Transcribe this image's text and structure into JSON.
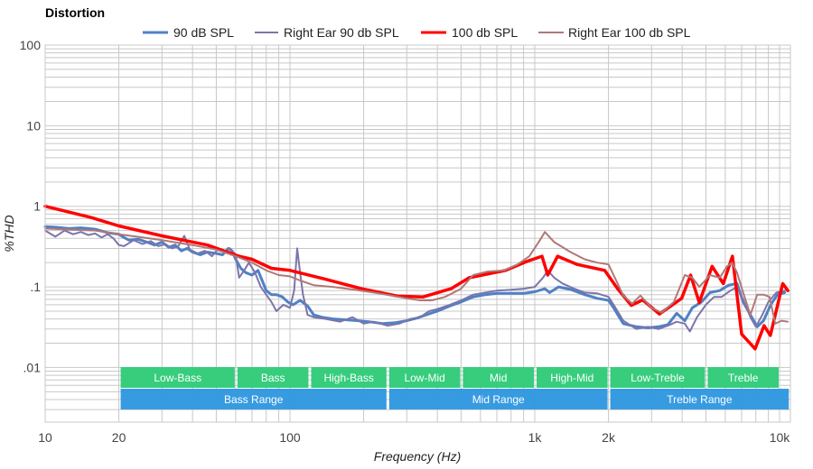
{
  "chart_data": {
    "type": "line",
    "title": "Distortion",
    "xlabel": "Frequency (Hz)",
    "ylabel": "%THD",
    "xscale": "log",
    "yscale": "log",
    "xlim": [
      10,
      11000
    ],
    "ylim": [
      0.0021,
      100
    ],
    "grid": true,
    "legend": "top-center",
    "x_ticks": [
      {
        "value": 10,
        "label": "10"
      },
      {
        "value": 20,
        "label": "20"
      },
      {
        "value": 100,
        "label": "100"
      },
      {
        "value": 1000,
        "label": "1k"
      },
      {
        "value": 2000,
        "label": "2k"
      },
      {
        "value": 10000,
        "label": "10k"
      }
    ],
    "y_ticks": [
      {
        "value": 100,
        "label": "100"
      },
      {
        "value": 10,
        "label": "10"
      },
      {
        "value": 1,
        "label": "1"
      },
      {
        "value": 0.1,
        "label": ".1"
      },
      {
        "value": 0.01,
        "label": ".01"
      }
    ],
    "bands": [
      {
        "label": "Low-Bass",
        "from": 20,
        "to": 60,
        "row": "sub",
        "color": "#33cc7a"
      },
      {
        "label": "Bass",
        "from": 60,
        "to": 120,
        "row": "sub",
        "color": "#33cc7a"
      },
      {
        "label": "High-Bass",
        "from": 120,
        "to": 250,
        "row": "sub",
        "color": "#33cc7a"
      },
      {
        "label": "Low-Mid",
        "from": 250,
        "to": 500,
        "row": "sub",
        "color": "#33cc7a"
      },
      {
        "label": "Mid",
        "from": 500,
        "to": 1000,
        "row": "sub",
        "color": "#33cc7a"
      },
      {
        "label": "High-Mid",
        "from": 1000,
        "to": 2000,
        "row": "sub",
        "color": "#33cc7a"
      },
      {
        "label": "Low-Treble",
        "from": 2000,
        "to": 5000,
        "row": "sub",
        "color": "#33cc7a"
      },
      {
        "label": "Treble",
        "from": 5000,
        "to": 10000,
        "row": "sub",
        "color": "#33cc7a"
      },
      {
        "label": "Bass Range",
        "from": 20,
        "to": 250,
        "row": "main",
        "color": "#3399e0"
      },
      {
        "label": "Mid Range",
        "from": 250,
        "to": 2000,
        "row": "main",
        "color": "#3399e0"
      },
      {
        "label": "Treble Range",
        "from": 2000,
        "to": 11000,
        "row": "main",
        "color": "#3399e0"
      }
    ],
    "series": [
      {
        "name": "90 dB SPL",
        "color": "#4f81c4",
        "width": 3,
        "points": [
          [
            10,
            0.56
          ],
          [
            11,
            0.55
          ],
          [
            12.5,
            0.53
          ],
          [
            14,
            0.54
          ],
          [
            16,
            0.52
          ],
          [
            18,
            0.47
          ],
          [
            20,
            0.45
          ],
          [
            21,
            0.41
          ],
          [
            22,
            0.38
          ],
          [
            24,
            0.39
          ],
          [
            26,
            0.36
          ],
          [
            28,
            0.33
          ],
          [
            30,
            0.36
          ],
          [
            32,
            0.31
          ],
          [
            34,
            0.33
          ],
          [
            36,
            0.28
          ],
          [
            38,
            0.3
          ],
          [
            40,
            0.27
          ],
          [
            43,
            0.25
          ],
          [
            46,
            0.27
          ],
          [
            50,
            0.26
          ],
          [
            53,
            0.25
          ],
          [
            56,
            0.3
          ],
          [
            58,
            0.28
          ],
          [
            60,
            0.22
          ],
          [
            63,
            0.17
          ],
          [
            66,
            0.15
          ],
          [
            70,
            0.14
          ],
          [
            74,
            0.16
          ],
          [
            77,
            0.12
          ],
          [
            80,
            0.09
          ],
          [
            84,
            0.08
          ],
          [
            88,
            0.08
          ],
          [
            93,
            0.075
          ],
          [
            98,
            0.065
          ],
          [
            103,
            0.06
          ],
          [
            110,
            0.068
          ],
          [
            118,
            0.058
          ],
          [
            125,
            0.045
          ],
          [
            135,
            0.042
          ],
          [
            150,
            0.04
          ],
          [
            170,
            0.039
          ],
          [
            190,
            0.038
          ],
          [
            210,
            0.037
          ],
          [
            240,
            0.035
          ],
          [
            270,
            0.036
          ],
          [
            300,
            0.038
          ],
          [
            330,
            0.041
          ],
          [
            360,
            0.045
          ],
          [
            400,
            0.05
          ],
          [
            450,
            0.058
          ],
          [
            500,
            0.065
          ],
          [
            560,
            0.075
          ],
          [
            630,
            0.08
          ],
          [
            700,
            0.083
          ],
          [
            800,
            0.083
          ],
          [
            900,
            0.083
          ],
          [
            1000,
            0.087
          ],
          [
            1100,
            0.095
          ],
          [
            1150,
            0.085
          ],
          [
            1250,
            0.1
          ],
          [
            1400,
            0.093
          ],
          [
            1600,
            0.08
          ],
          [
            1800,
            0.072
          ],
          [
            2000,
            0.068
          ],
          [
            2100,
            0.055
          ],
          [
            2300,
            0.035
          ],
          [
            2600,
            0.032
          ],
          [
            2900,
            0.031
          ],
          [
            3200,
            0.032
          ],
          [
            3500,
            0.034
          ],
          [
            3800,
            0.047
          ],
          [
            4100,
            0.038
          ],
          [
            4400,
            0.055
          ],
          [
            4800,
            0.065
          ],
          [
            5200,
            0.085
          ],
          [
            5700,
            0.09
          ],
          [
            6200,
            0.105
          ],
          [
            6700,
            0.11
          ],
          [
            7100,
            0.065
          ],
          [
            7600,
            0.045
          ],
          [
            8100,
            0.032
          ],
          [
            8600,
            0.038
          ],
          [
            9200,
            0.06
          ],
          [
            9800,
            0.08
          ],
          [
            10500,
            0.085
          ]
        ]
      },
      {
        "name": "Right Ear 90 db SPL",
        "color": "#7b75ad",
        "width": 2,
        "points": [
          [
            10,
            0.5
          ],
          [
            11,
            0.42
          ],
          [
            12,
            0.5
          ],
          [
            13,
            0.45
          ],
          [
            14,
            0.48
          ],
          [
            15,
            0.44
          ],
          [
            16,
            0.46
          ],
          [
            17,
            0.41
          ],
          [
            18,
            0.45
          ],
          [
            19,
            0.4
          ],
          [
            20,
            0.33
          ],
          [
            21,
            0.32
          ],
          [
            23,
            0.38
          ],
          [
            25,
            0.34
          ],
          [
            27,
            0.37
          ],
          [
            29,
            0.32
          ],
          [
            31,
            0.34
          ],
          [
            33,
            0.3
          ],
          [
            35,
            0.32
          ],
          [
            37,
            0.43
          ],
          [
            39,
            0.29
          ],
          [
            42,
            0.26
          ],
          [
            45,
            0.28
          ],
          [
            48,
            0.24
          ],
          [
            51,
            0.3
          ],
          [
            54,
            0.27
          ],
          [
            57,
            0.3
          ],
          [
            60,
            0.25
          ],
          [
            62,
            0.13
          ],
          [
            65,
            0.16
          ],
          [
            68,
            0.2
          ],
          [
            72,
            0.15
          ],
          [
            76,
            0.1
          ],
          [
            80,
            0.08
          ],
          [
            84,
            0.065
          ],
          [
            88,
            0.05
          ],
          [
            94,
            0.06
          ],
          [
            100,
            0.055
          ],
          [
            104,
            0.09
          ],
          [
            107,
            0.3
          ],
          [
            110,
            0.15
          ],
          [
            113,
            0.08
          ],
          [
            118,
            0.045
          ],
          [
            125,
            0.042
          ],
          [
            140,
            0.04
          ],
          [
            160,
            0.037
          ],
          [
            180,
            0.042
          ],
          [
            200,
            0.035
          ],
          [
            220,
            0.037
          ],
          [
            250,
            0.033
          ],
          [
            280,
            0.035
          ],
          [
            310,
            0.04
          ],
          [
            340,
            0.042
          ],
          [
            370,
            0.05
          ],
          [
            400,
            0.053
          ],
          [
            450,
            0.06
          ],
          [
            500,
            0.068
          ],
          [
            560,
            0.08
          ],
          [
            630,
            0.085
          ],
          [
            700,
            0.09
          ],
          [
            800,
            0.092
          ],
          [
            900,
            0.095
          ],
          [
            1000,
            0.1
          ],
          [
            1080,
            0.13
          ],
          [
            1130,
            0.16
          ],
          [
            1200,
            0.13
          ],
          [
            1300,
            0.11
          ],
          [
            1450,
            0.095
          ],
          [
            1600,
            0.085
          ],
          [
            1800,
            0.083
          ],
          [
            2000,
            0.075
          ],
          [
            2100,
            0.06
          ],
          [
            2300,
            0.038
          ],
          [
            2600,
            0.03
          ],
          [
            2900,
            0.032
          ],
          [
            3200,
            0.03
          ],
          [
            3500,
            0.033
          ],
          [
            3800,
            0.037
          ],
          [
            4100,
            0.035
          ],
          [
            4300,
            0.028
          ],
          [
            4600,
            0.042
          ],
          [
            5000,
            0.06
          ],
          [
            5400,
            0.075
          ],
          [
            5800,
            0.075
          ],
          [
            6300,
            0.09
          ],
          [
            6700,
            0.1
          ],
          [
            7100,
            0.07
          ],
          [
            7600,
            0.042
          ],
          [
            8000,
            0.032
          ],
          [
            8500,
            0.045
          ],
          [
            9000,
            0.065
          ],
          [
            9700,
            0.085
          ],
          [
            10500,
            0.09
          ]
        ]
      },
      {
        "name": "100 db SPL",
        "color": "#ff0000",
        "width": 3.5,
        "points": [
          [
            10,
            1.0
          ],
          [
            15.3,
            0.73
          ],
          [
            20,
            0.57
          ],
          [
            30,
            0.43
          ],
          [
            46,
            0.33
          ],
          [
            62,
            0.24
          ],
          [
            70,
            0.22
          ],
          [
            84,
            0.17
          ],
          [
            100,
            0.16
          ],
          [
            139,
            0.125
          ],
          [
            196,
            0.095
          ],
          [
            274,
            0.077
          ],
          [
            350,
            0.075
          ],
          [
            455,
            0.095
          ],
          [
            540,
            0.13
          ],
          [
            760,
            0.16
          ],
          [
            940,
            0.21
          ],
          [
            1070,
            0.24
          ],
          [
            1130,
            0.14
          ],
          [
            1240,
            0.24
          ],
          [
            1490,
            0.19
          ],
          [
            1930,
            0.16
          ],
          [
            2180,
            0.095
          ],
          [
            2480,
            0.059
          ],
          [
            2760,
            0.069
          ],
          [
            3230,
            0.046
          ],
          [
            3980,
            0.072
          ],
          [
            4330,
            0.14
          ],
          [
            4700,
            0.064
          ],
          [
            5300,
            0.18
          ],
          [
            5890,
            0.11
          ],
          [
            6420,
            0.24
          ],
          [
            7000,
            0.026
          ],
          [
            7940,
            0.017
          ],
          [
            8640,
            0.033
          ],
          [
            9170,
            0.025
          ],
          [
            10300,
            0.11
          ],
          [
            10800,
            0.09
          ]
        ]
      },
      {
        "name": "Right Ear 100 db SPL",
        "color": "#b07878",
        "width": 2,
        "points": [
          [
            10,
            0.53
          ],
          [
            13,
            0.51
          ],
          [
            16,
            0.5
          ],
          [
            20,
            0.45
          ],
          [
            25,
            0.41
          ],
          [
            30,
            0.38
          ],
          [
            40,
            0.33
          ],
          [
            50,
            0.29
          ],
          [
            60,
            0.24
          ],
          [
            70,
            0.2
          ],
          [
            80,
            0.16
          ],
          [
            90,
            0.14
          ],
          [
            100,
            0.135
          ],
          [
            110,
            0.12
          ],
          [
            125,
            0.105
          ],
          [
            150,
            0.1
          ],
          [
            180,
            0.093
          ],
          [
            220,
            0.085
          ],
          [
            260,
            0.078
          ],
          [
            300,
            0.072
          ],
          [
            340,
            0.068
          ],
          [
            380,
            0.068
          ],
          [
            430,
            0.075
          ],
          [
            500,
            0.095
          ],
          [
            560,
            0.14
          ],
          [
            640,
            0.155
          ],
          [
            750,
            0.16
          ],
          [
            850,
            0.19
          ],
          [
            950,
            0.24
          ],
          [
            1050,
            0.38
          ],
          [
            1100,
            0.48
          ],
          [
            1200,
            0.36
          ],
          [
            1400,
            0.27
          ],
          [
            1600,
            0.22
          ],
          [
            1800,
            0.2
          ],
          [
            2000,
            0.19
          ],
          [
            2100,
            0.14
          ],
          [
            2300,
            0.078
          ],
          [
            2500,
            0.062
          ],
          [
            2700,
            0.078
          ],
          [
            3000,
            0.055
          ],
          [
            3300,
            0.048
          ],
          [
            3700,
            0.065
          ],
          [
            4100,
            0.14
          ],
          [
            4400,
            0.13
          ],
          [
            4700,
            0.1
          ],
          [
            5200,
            0.14
          ],
          [
            5700,
            0.13
          ],
          [
            6100,
            0.18
          ],
          [
            6400,
            0.2
          ],
          [
            6700,
            0.15
          ],
          [
            7100,
            0.085
          ],
          [
            7600,
            0.045
          ],
          [
            8100,
            0.08
          ],
          [
            8600,
            0.08
          ],
          [
            9100,
            0.075
          ],
          [
            9600,
            0.035
          ],
          [
            10200,
            0.038
          ],
          [
            10800,
            0.037
          ]
        ]
      }
    ]
  }
}
